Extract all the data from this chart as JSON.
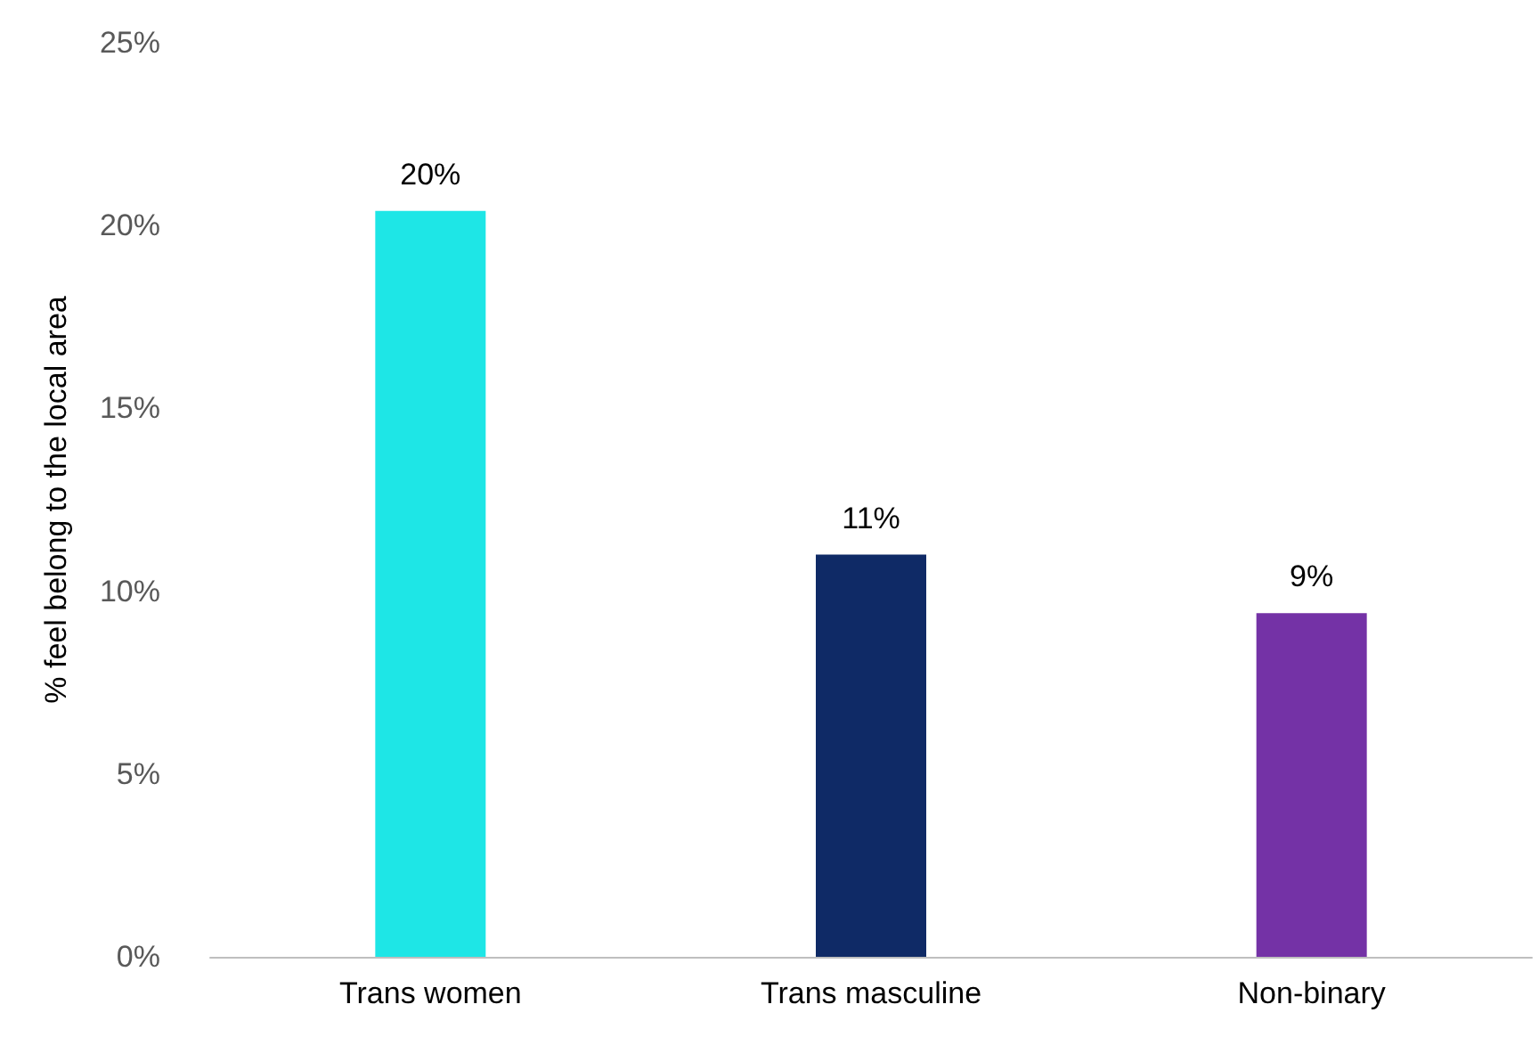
{
  "chart_data": {
    "type": "bar",
    "ylabel": "% feel belong to the local area",
    "categories": [
      "Trans women",
      "Trans masculine",
      "Non-binary"
    ],
    "values": [
      20.4,
      11.0,
      9.4
    ],
    "colors": [
      "#1ee6e6",
      "#0f2a66",
      "#7432a6"
    ],
    "value_labels": [
      "20%",
      "11%",
      "9%"
    ],
    "ylim": [
      0,
      25
    ],
    "yticks": [
      {
        "value": 0,
        "label": "0%"
      },
      {
        "value": 5,
        "label": "5%"
      },
      {
        "value": 10,
        "label": "10%"
      },
      {
        "value": 15,
        "label": "15%"
      },
      {
        "value": 20,
        "label": "20%"
      },
      {
        "value": 25,
        "label": "25%"
      }
    ],
    "grid": false
  }
}
